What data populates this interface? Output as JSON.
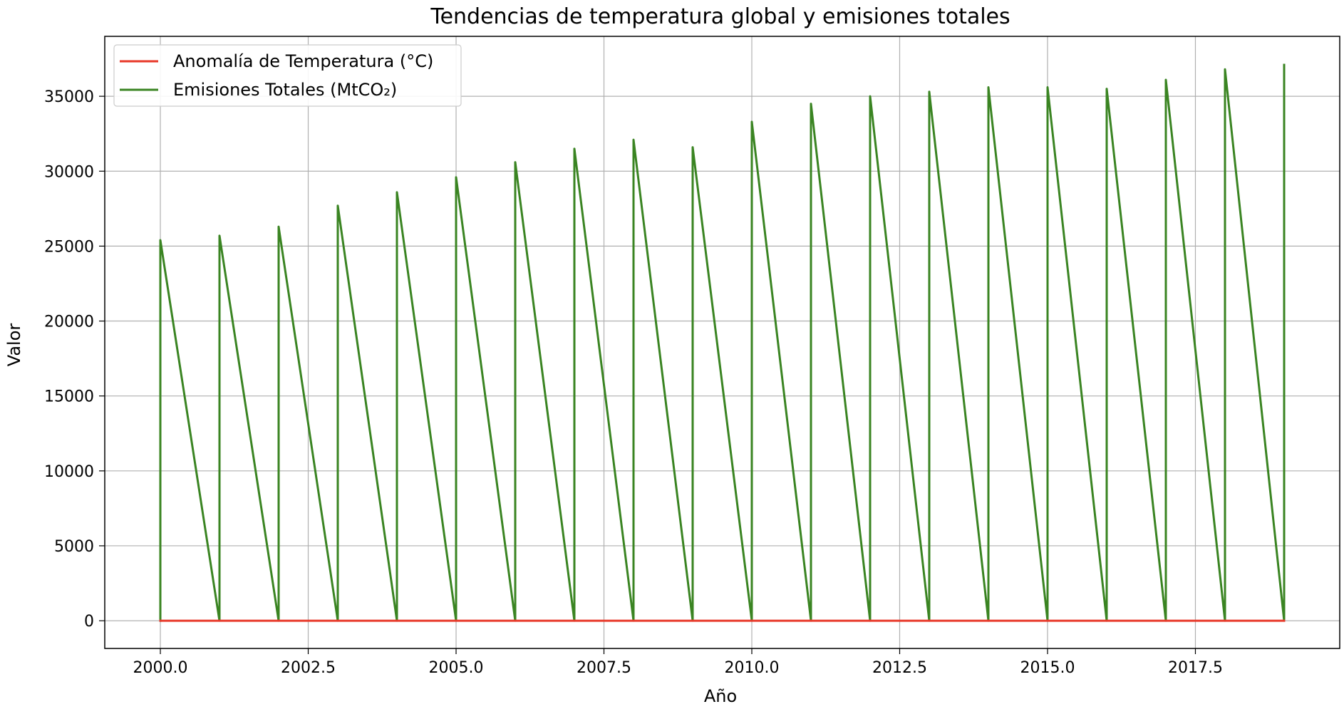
{
  "chart_data": {
    "type": "line",
    "title": "Tendencias de temperatura global y emisiones totales",
    "xlabel": "Año",
    "ylabel": "Valor",
    "xlim": [
      1999.06,
      2019.94
    ],
    "ylim": [
      -1850,
      39000
    ],
    "xticks": [
      2000.0,
      2002.5,
      2005.0,
      2007.5,
      2010.0,
      2012.5,
      2015.0,
      2017.5
    ],
    "xtick_labels": [
      "2000.0",
      "2002.5",
      "2005.0",
      "2007.5",
      "2010.0",
      "2012.5",
      "2015.0",
      "2017.5"
    ],
    "yticks": [
      0,
      5000,
      10000,
      15000,
      20000,
      25000,
      30000,
      35000
    ],
    "ytick_labels": [
      "0",
      "5000",
      "10000",
      "15000",
      "20000",
      "25000",
      "30000",
      "35000"
    ],
    "grid": true,
    "legend_position": "top-left",
    "series": [
      {
        "name": "Anomalía de Temperatura (°C)",
        "color": "#e8392a",
        "x": [
          2000,
          2019
        ],
        "y": [
          0,
          0
        ]
      },
      {
        "name": "Emisiones Totales (MtCO₂)",
        "color": "#3a8422",
        "x": [
          2000,
          2000,
          2001,
          2001,
          2002,
          2002,
          2003,
          2003,
          2004,
          2004,
          2005,
          2005,
          2006,
          2006,
          2007,
          2007,
          2008,
          2008,
          2009,
          2009,
          2010,
          2010,
          2011,
          2011,
          2012,
          2012,
          2013,
          2013,
          2014,
          2014,
          2015,
          2015,
          2016,
          2016,
          2017,
          2017,
          2018,
          2018,
          2019,
          2019
        ],
        "y": [
          0,
          25400,
          0,
          25700,
          0,
          26300,
          0,
          27700,
          0,
          28600,
          0,
          29600,
          0,
          30600,
          0,
          31500,
          0,
          32100,
          0,
          31600,
          0,
          33300,
          0,
          34500,
          0,
          35000,
          0,
          35300,
          0,
          35600,
          0,
          35600,
          0,
          35500,
          0,
          36100,
          0,
          36800,
          0,
          37100
        ]
      }
    ]
  }
}
